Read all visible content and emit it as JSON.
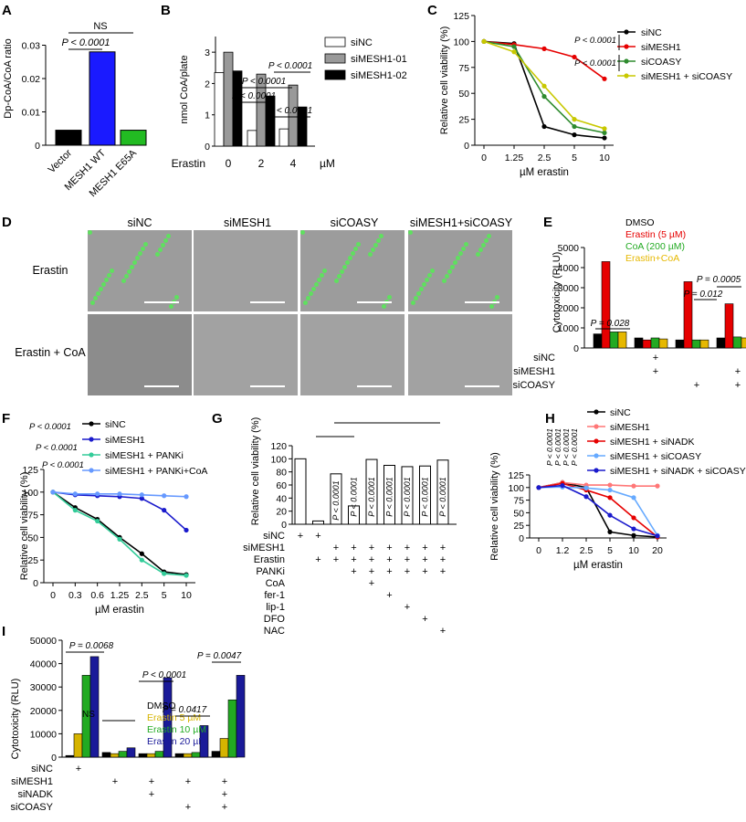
{
  "panels": {
    "A": {
      "letter": "A",
      "ylabel": "Dp-CoA/CoA ratio",
      "yticks": [
        "0",
        "0.01",
        "0.02",
        "0.03"
      ],
      "categories": [
        "Vector",
        "MESH1 WT",
        "MESH1 E65A"
      ],
      "values": [
        0.0045,
        0.028,
        0.0045
      ],
      "colors": [
        "#000000",
        "#1a1aff",
        "#22bb22"
      ],
      "ann": [
        "NS",
        "P < 0.0001"
      ]
    },
    "B": {
      "letter": "B",
      "ylabel": "nmol CoA/plate",
      "yticks": [
        "0",
        "1",
        "2",
        "3"
      ],
      "xlabel": "Erastin",
      "unit": "µM",
      "groups": [
        "0",
        "2",
        "4"
      ],
      "series": [
        {
          "name": "siNC",
          "values": [
            2.35,
            0.5,
            0.55
          ],
          "color": "#ffffff"
        },
        {
          "name": "siMESH1-01",
          "values": [
            3.0,
            2.3,
            1.95
          ],
          "color": "#999999"
        },
        {
          "name": "siMESH1-02",
          "values": [
            2.4,
            1.6,
            1.25
          ],
          "color": "#000000"
        }
      ],
      "ann": [
        "P < 0.0001",
        "P < 0.0001",
        "P < 0.0001",
        "P < 0.0001"
      ]
    },
    "C": {
      "letter": "C",
      "ylabel": "Relative cell viability (%)",
      "xlabel": "µM erastin",
      "yticks": [
        "0",
        "25",
        "50",
        "75",
        "100",
        "125"
      ],
      "xticks": [
        "0",
        "1.25",
        "2.5",
        "5",
        "10"
      ],
      "series": [
        {
          "name": "siNC",
          "color": "#000000",
          "values": [
            100,
            98,
            18,
            10,
            7
          ]
        },
        {
          "name": "siMESH1",
          "color": "#e60000",
          "values": [
            100,
            97,
            93,
            85,
            64
          ]
        },
        {
          "name": "siCOASY",
          "color": "#2e8b2e",
          "values": [
            100,
            95,
            47,
            18,
            12
          ]
        },
        {
          "name": "siMESH1 + siCOASY",
          "color": "#c8c800",
          "values": [
            100,
            90,
            57,
            25,
            16
          ]
        }
      ],
      "ann": [
        "P < 0.0001",
        "P < 0.0001"
      ]
    },
    "D": {
      "letter": "D",
      "columns": [
        "siNC",
        "siMESH1",
        "siCOASY",
        "siMESH1+siCOASY"
      ],
      "rows": [
        "Erastin",
        "Erastin + CoA"
      ]
    },
    "E": {
      "letter": "E",
      "ylabel": "Cytotoxicity (RLU)",
      "yticks": [
        "0",
        "1000",
        "2000",
        "3000",
        "4000",
        "5000"
      ],
      "legend": [
        {
          "name": "DMSO",
          "color": "#000000"
        },
        {
          "name": "Erastin (5 µM)",
          "color": "#e60000"
        },
        {
          "name": "CoA (200 µM)",
          "color": "#22aa22"
        },
        {
          "name": "Erastin+CoA",
          "color": "#e6b800"
        }
      ],
      "groups": [
        [
          700,
          4300,
          800,
          800
        ],
        [
          500,
          400,
          500,
          450
        ],
        [
          400,
          3300,
          400,
          400
        ],
        [
          500,
          2200,
          550,
          500
        ]
      ],
      "ann": [
        "P = 0.028",
        "P = 0.012",
        "P = 0.0005"
      ],
      "rows": [
        {
          "label": "siNC",
          "marks": [
            "",
            "+",
            "",
            ""
          ]
        },
        {
          "label": "siMESH1",
          "marks": [
            "",
            "+",
            "",
            "+"
          ]
        },
        {
          "label": "siCOASY",
          "marks": [
            "",
            "",
            "+",
            "+"
          ]
        }
      ]
    },
    "F": {
      "letter": "F",
      "ylabel": "Relative cell viability (%)",
      "xlabel": "µM erastin",
      "yticks": [
        "0",
        "25",
        "50",
        "75",
        "100",
        "125"
      ],
      "xticks": [
        "0",
        "0.3",
        "0.6",
        "1.25",
        "2.5",
        "5",
        "10"
      ],
      "series": [
        {
          "name": "siNC",
          "color": "#000000",
          "values": [
            100,
            83,
            70,
            50,
            32,
            12,
            9
          ]
        },
        {
          "name": "siMESH1",
          "color": "#1a1acc",
          "values": [
            100,
            97,
            96,
            95,
            93,
            80,
            58
          ]
        },
        {
          "name": "siMESH1 + PANKi",
          "color": "#33cc99",
          "values": [
            100,
            80,
            68,
            48,
            25,
            10,
            8
          ]
        },
        {
          "name": "siMESH1 + PANKi+CoA",
          "color": "#6699ff",
          "values": [
            100,
            98,
            98,
            98,
            97,
            96,
            95
          ]
        }
      ],
      "ann": [
        "P < 0.0001",
        "P < 0.0001",
        "P < 0.0001"
      ]
    },
    "G": {
      "letter": "G",
      "ylabel": "Relative cell viability (%)",
      "yticks": [
        "0",
        "20",
        "40",
        "60",
        "80",
        "100",
        "120"
      ],
      "values": [
        100,
        5,
        77,
        28,
        99,
        90,
        88,
        89,
        98
      ],
      "ann": [
        "P < 0.0001",
        "P < 0.0001",
        "P < 0.0001",
        "P < 0.0001",
        "P < 0.0001",
        "P < 0.0001",
        "P < 0.0001"
      ],
      "rows": [
        {
          "label": "siNC",
          "marks": [
            "+",
            "+",
            "",
            "",
            "",
            "",
            "",
            "",
            ""
          ]
        },
        {
          "label": "siMESH1",
          "marks": [
            "",
            "",
            "+",
            "+",
            "+",
            "+",
            "+",
            "+",
            "+"
          ]
        },
        {
          "label": "Erastin",
          "marks": [
            "",
            "+",
            "+",
            "+",
            "+",
            "+",
            "+",
            "+",
            "+"
          ]
        },
        {
          "label": "PANKi",
          "marks": [
            "",
            "",
            "",
            "+",
            "+",
            "+",
            "+",
            "+",
            "+"
          ]
        },
        {
          "label": "CoA",
          "marks": [
            "",
            "",
            "",
            "",
            "+",
            "",
            "",
            "",
            ""
          ]
        },
        {
          "label": "fer-1",
          "marks": [
            "",
            "",
            "",
            "",
            "",
            "+",
            "",
            "",
            ""
          ]
        },
        {
          "label": "lip-1",
          "marks": [
            "",
            "",
            "",
            "",
            "",
            "",
            "+",
            "",
            ""
          ]
        },
        {
          "label": "DFO",
          "marks": [
            "",
            "",
            "",
            "",
            "",
            "",
            "",
            "+",
            ""
          ]
        },
        {
          "label": "NAC",
          "marks": [
            "",
            "",
            "",
            "",
            "",
            "",
            "",
            "",
            "+"
          ]
        }
      ]
    },
    "H": {
      "letter": "H",
      "ylabel": "Relative cell viability (%)",
      "xlabel": "µM erastin",
      "yticks": [
        "0",
        "25",
        "50",
        "75",
        "100",
        "125"
      ],
      "xticks": [
        "0",
        "1.2",
        "2.5",
        "5",
        "10",
        "20"
      ],
      "series": [
        {
          "name": "siNC",
          "color": "#000000",
          "values": [
            100,
            110,
            100,
            12,
            5,
            2
          ]
        },
        {
          "name": "siMESH1",
          "color": "#ff7777",
          "values": [
            100,
            110,
            105,
            105,
            103,
            103
          ]
        },
        {
          "name": "siMESH1 + siNADK",
          "color": "#e60000",
          "values": [
            100,
            108,
            95,
            80,
            40,
            2
          ]
        },
        {
          "name": "siMESH1 + siCOASY",
          "color": "#66aaff",
          "values": [
            100,
            101,
            99,
            95,
            80,
            5
          ]
        },
        {
          "name": "siMESH1 + siNADK + siCOASY",
          "color": "#1a1acc",
          "values": [
            100,
            104,
            82,
            45,
            18,
            4
          ]
        }
      ],
      "ann": [
        "P < 0.0001",
        "P < 0.0001",
        "P < 0.0001",
        "P < 0.0001"
      ]
    },
    "I": {
      "letter": "I",
      "ylabel": "Cytotoxicity (RLU)",
      "yticks": [
        "0",
        "10000",
        "20000",
        "30000",
        "40000",
        "50000"
      ],
      "legend": [
        {
          "name": "DMSO",
          "color": "#000000"
        },
        {
          "name": "Erastin 5 µM",
          "color": "#d6b400"
        },
        {
          "name": "Erastin 10 µM",
          "color": "#22aa22"
        },
        {
          "name": "Erastin 20 µM",
          "color": "#1a1a99"
        }
      ],
      "groups": [
        [
          700,
          10000,
          35000,
          43000
        ],
        [
          2000,
          1500,
          2500,
          4000
        ],
        [
          1500,
          1500,
          2500,
          34000
        ],
        [
          1500,
          1500,
          2000,
          13500
        ],
        [
          2500,
          8000,
          24500,
          35000
        ]
      ],
      "ann": [
        "P = 0.0068",
        "NS",
        "P < 0.0001",
        "P = 0.0417",
        "P = 0.0047"
      ],
      "rows": [
        {
          "label": "siNC",
          "marks": [
            "+",
            "",
            "",
            "",
            ""
          ]
        },
        {
          "label": "siMESH1",
          "marks": [
            "",
            "+",
            "+",
            "+",
            "+"
          ]
        },
        {
          "label": "siNADK",
          "marks": [
            "",
            "",
            "+",
            "",
            "+"
          ]
        },
        {
          "label": "siCOASY",
          "marks": [
            "",
            "",
            "",
            "+",
            "+"
          ]
        }
      ]
    }
  }
}
